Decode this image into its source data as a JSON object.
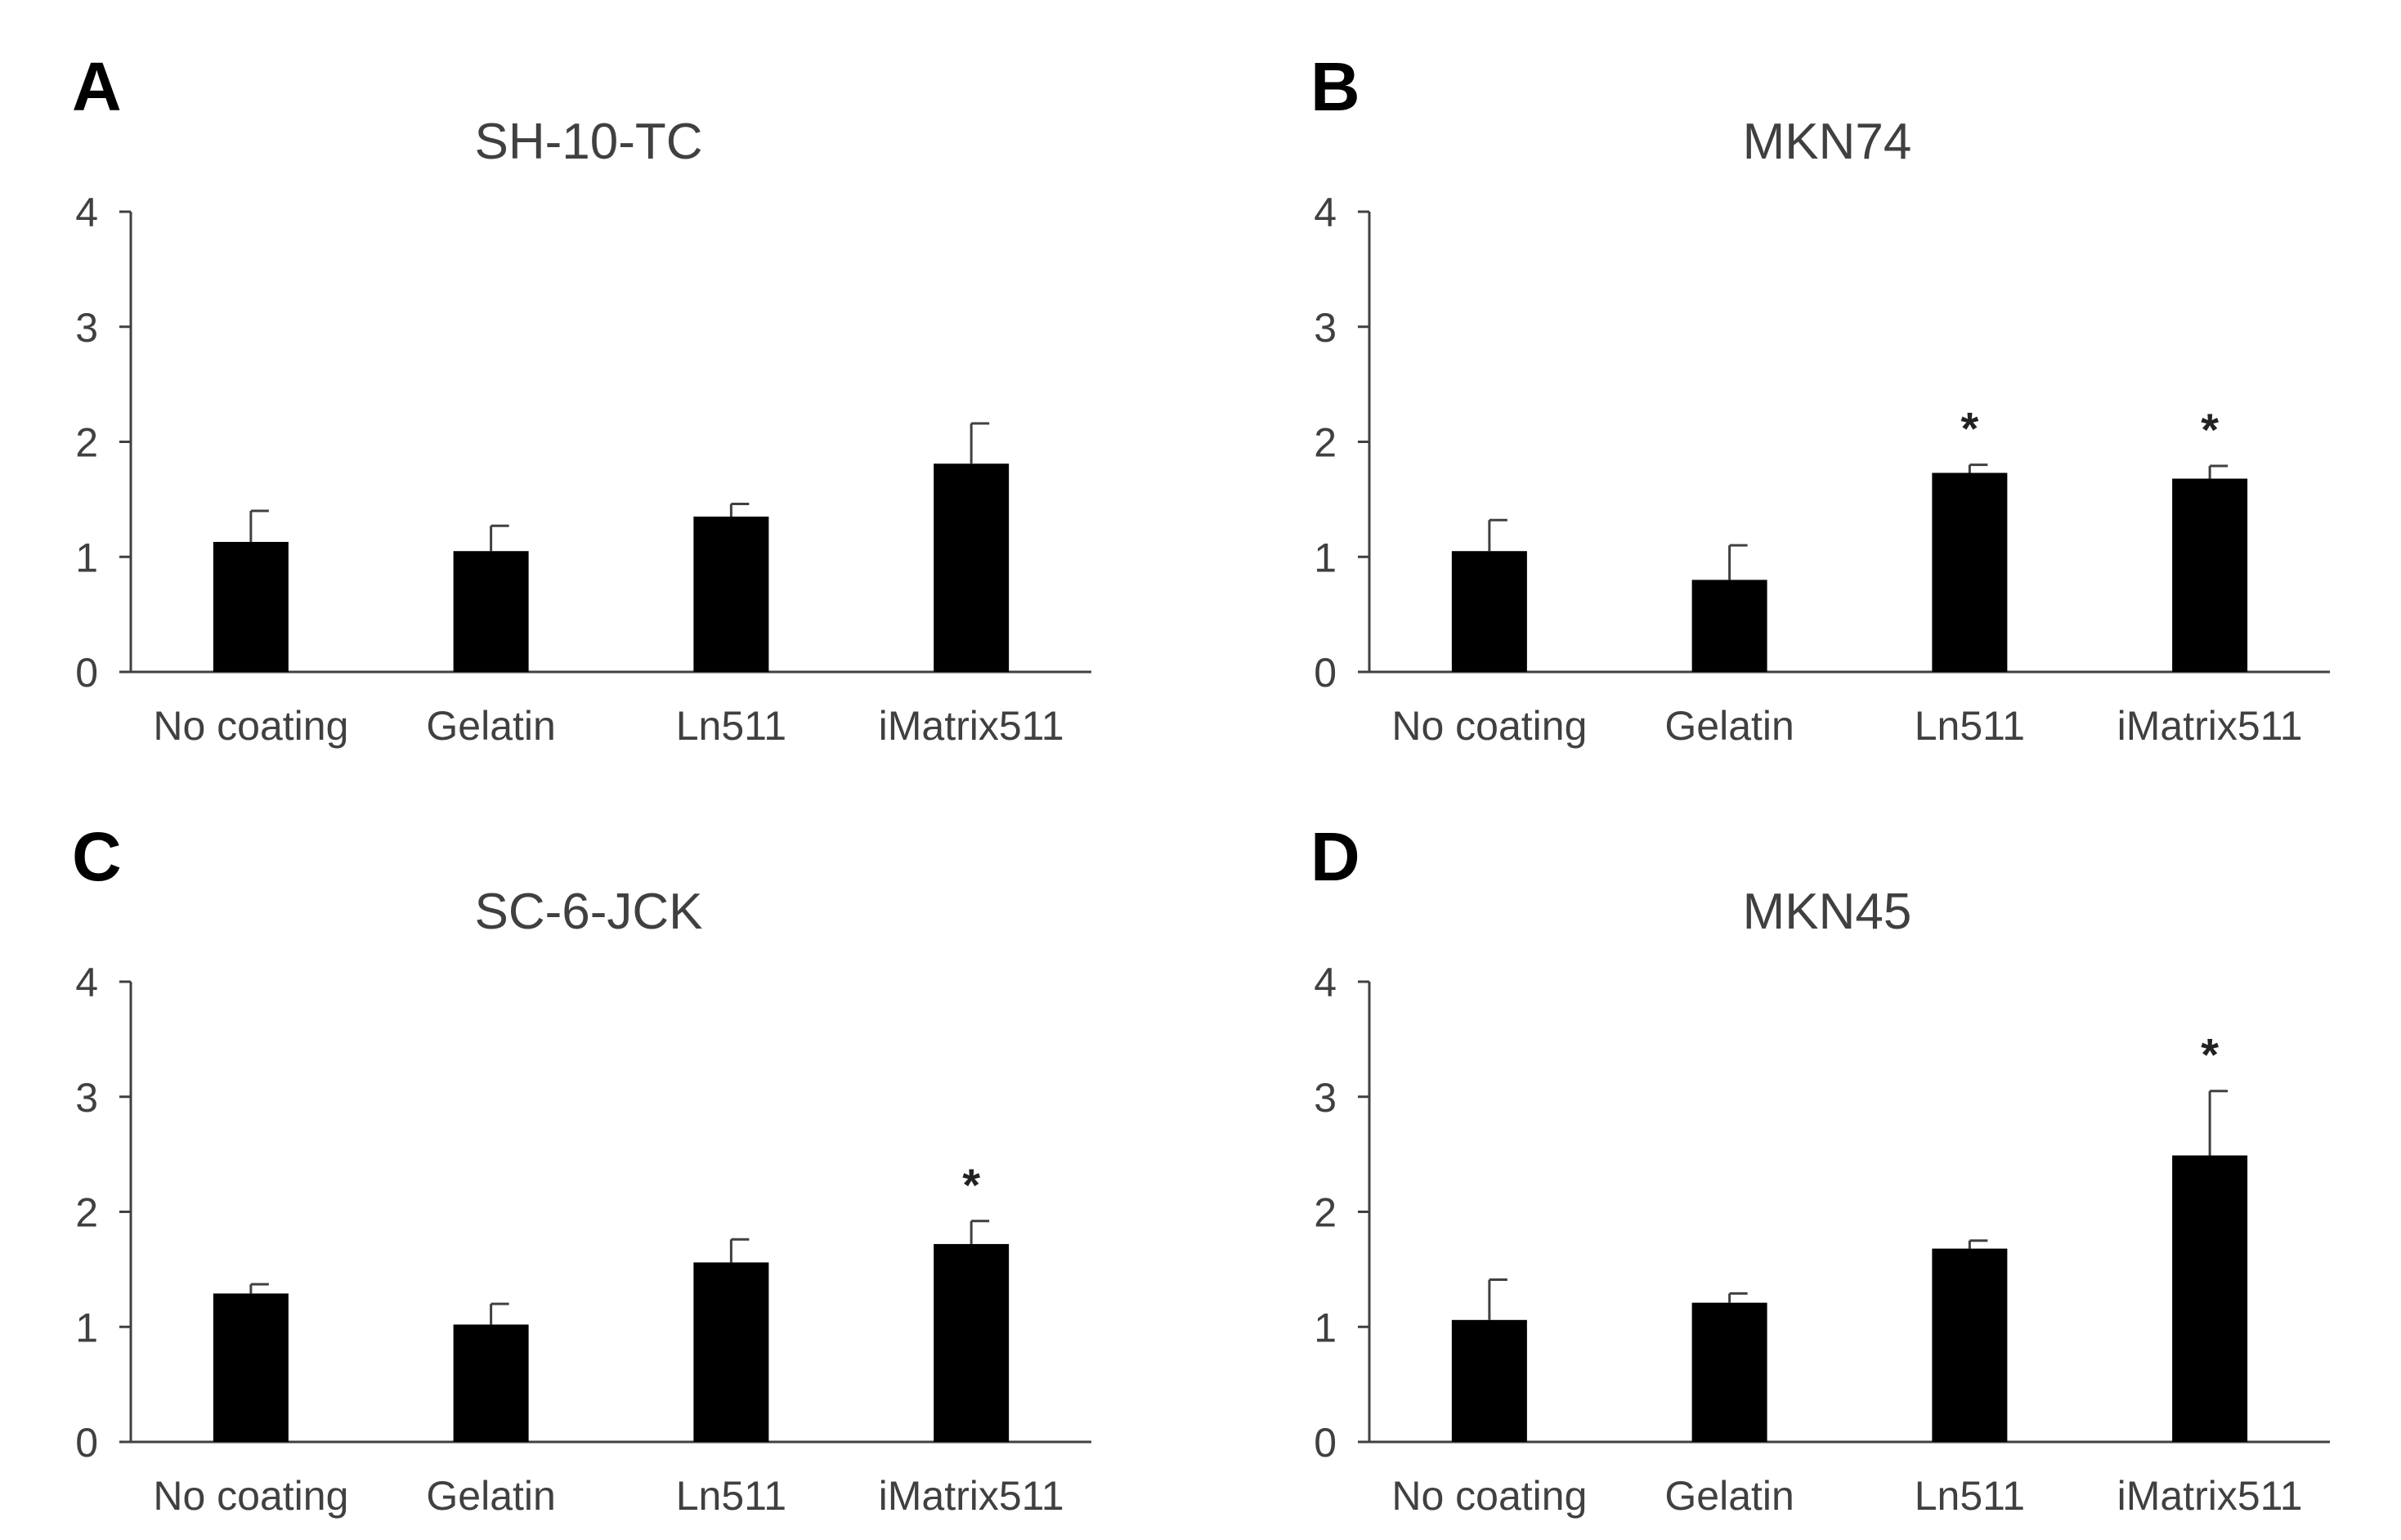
{
  "figure": {
    "colors": {
      "bar": "#000000",
      "axis": "#404040",
      "text": "#404040"
    }
  },
  "chart_data": [
    {
      "panel": "A",
      "type": "bar",
      "title": "SH-10-TC",
      "categories": [
        "No coating",
        "Gelatin",
        "Ln511",
        "iMatrix511"
      ],
      "values": [
        1.13,
        1.05,
        1.35,
        1.81
      ],
      "error_upper": [
        0.27,
        0.22,
        0.11,
        0.35
      ],
      "significance": [
        "",
        "",
        "",
        ""
      ],
      "ylim": [
        0,
        4
      ],
      "yticks": [
        "0",
        "1",
        "2",
        "3",
        "4"
      ],
      "xlabel": "",
      "ylabel": ""
    },
    {
      "panel": "B",
      "type": "bar",
      "title": "MKN74",
      "categories": [
        "No coating",
        "Gelatin",
        "Ln511",
        "iMatrix511"
      ],
      "values": [
        1.05,
        0.8,
        1.73,
        1.68
      ],
      "error_upper": [
        0.27,
        0.3,
        0.07,
        0.11
      ],
      "significance": [
        "",
        "",
        "*",
        "*"
      ],
      "ylim": [
        0,
        4
      ],
      "yticks": [
        "0",
        "1",
        "2",
        "3",
        "4"
      ],
      "xlabel": "",
      "ylabel": ""
    },
    {
      "panel": "C",
      "type": "bar",
      "title": "SC-6-JCK",
      "categories": [
        "No coating",
        "Gelatin",
        "Ln511",
        "iMatrix511"
      ],
      "values": [
        1.29,
        1.02,
        1.56,
        1.72
      ],
      "error_upper": [
        0.08,
        0.18,
        0.2,
        0.2
      ],
      "significance": [
        "",
        "",
        "",
        "*"
      ],
      "ylim": [
        0,
        4
      ],
      "yticks": [
        "0",
        "1",
        "2",
        "3",
        "4"
      ],
      "xlabel": "",
      "ylabel": ""
    },
    {
      "panel": "D",
      "type": "bar",
      "title": "MKN45",
      "categories": [
        "No coating",
        "Gelatin",
        "Ln511",
        "iMatrix511"
      ],
      "values": [
        1.06,
        1.21,
        1.68,
        2.49
      ],
      "error_upper": [
        0.35,
        0.08,
        0.07,
        0.56
      ],
      "significance": [
        "",
        "",
        "",
        "*"
      ],
      "ylim": [
        0,
        4
      ],
      "yticks": [
        "0",
        "1",
        "2",
        "3",
        "4"
      ],
      "xlabel": "",
      "ylabel": ""
    }
  ]
}
